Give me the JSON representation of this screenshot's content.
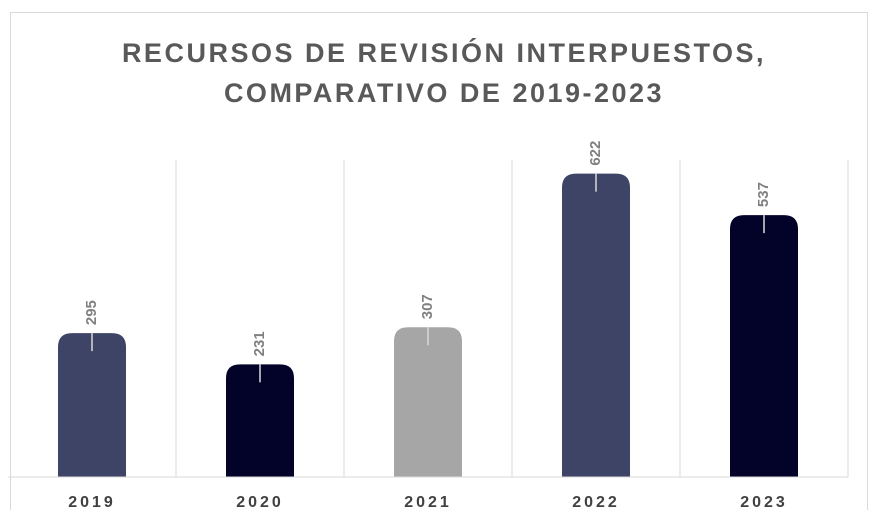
{
  "chart_data": {
    "type": "bar",
    "title": [
      "RECURSOS DE REVISIÓN INTERPUESTOS,",
      "COMPARATIVO DE 2019-2023"
    ],
    "categories": [
      "2019",
      "2020",
      "2021",
      "2022",
      "2023"
    ],
    "values": [
      295,
      231,
      307,
      622,
      537
    ],
    "colors": [
      "#3d4466",
      "#03032a",
      "#a6a6a6",
      "#3d4466",
      "#03032a"
    ],
    "ylim": [
      0,
      650
    ],
    "grid": true
  }
}
